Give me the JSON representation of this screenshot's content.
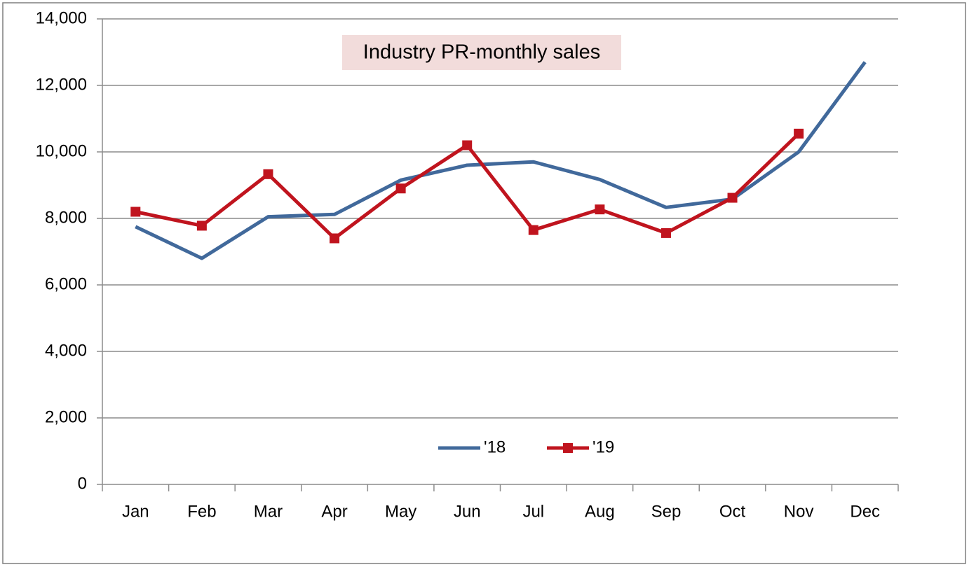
{
  "chart_data": {
    "type": "line",
    "title": "Industry PR-monthly sales",
    "categories": [
      "Jan",
      "Feb",
      "Mar",
      "Apr",
      "May",
      "Jun",
      "Jul",
      "Aug",
      "Sep",
      "Oct",
      "Nov",
      "Dec"
    ],
    "series": [
      {
        "name": "'18",
        "color": "#41699b",
        "marker": "none",
        "values": [
          7750,
          6800,
          8050,
          8120,
          9150,
          9600,
          9700,
          9170,
          8330,
          8580,
          10000,
          12700
        ]
      },
      {
        "name": "'19",
        "color": "#c0141e",
        "marker": "square",
        "values": [
          8200,
          7780,
          9330,
          7400,
          8900,
          10200,
          7650,
          8270,
          7560,
          8620,
          10550,
          null
        ]
      }
    ],
    "ylim": [
      0,
      14000
    ],
    "yticks": [
      0,
      {
        "value": 2000,
        "label": "2,000"
      },
      {
        "value": 4000,
        "label": "4,000"
      },
      {
        "value": 6000,
        "label": "6,000"
      },
      {
        "value": 8000,
        "label": "8,000"
      },
      {
        "value": 10000,
        "label": "10,000"
      },
      {
        "value": 12000,
        "label": "12,000"
      },
      {
        "value": 14000,
        "label": "14,000"
      }
    ],
    "grid": true,
    "legend": "bottom-center"
  }
}
